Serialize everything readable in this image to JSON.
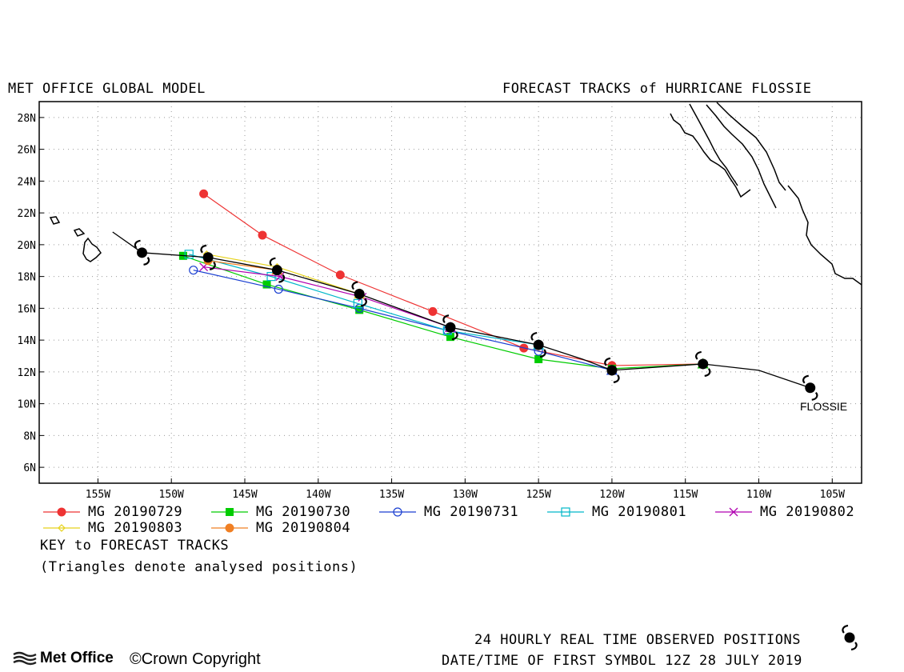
{
  "header": {
    "left_title": "MET OFFICE GLOBAL MODEL",
    "right_title": "FORECAST TRACKS of HURRICANE FLOSSIE"
  },
  "map": {
    "lon_range": [
      -159,
      -103
    ],
    "lat_range": [
      5,
      29
    ],
    "lat_ticks": [
      "28N",
      "26N",
      "24N",
      "22N",
      "20N",
      "18N",
      "16N",
      "14N",
      "12N",
      "10N",
      "8N",
      "6N"
    ],
    "lon_ticks": [
      "155W",
      "150W",
      "145W",
      "140W",
      "135W",
      "130W",
      "125W",
      "120W",
      "115W",
      "110W",
      "105W"
    ],
    "grid": "dotted",
    "storm_label": "FLOSSIE"
  },
  "legend": {
    "items": [
      {
        "label": "MG 20190729",
        "color": "#ee3333",
        "marker": "filled-circle"
      },
      {
        "label": "MG 20190730",
        "color": "#00cc00",
        "marker": "filled-square"
      },
      {
        "label": "MG 20190731",
        "color": "#1a3fd1",
        "marker": "open-circle"
      },
      {
        "label": "MG 20190801",
        "color": "#00b7c9",
        "marker": "open-square"
      },
      {
        "label": "MG 20190802",
        "color": "#b000b0",
        "marker": "cross"
      },
      {
        "label": "MG 20190803",
        "color": "#e6d21a",
        "marker": "diamond"
      },
      {
        "label": "MG 20190804",
        "color": "#f07f23",
        "marker": "filled-circle"
      }
    ],
    "key_title": "KEY to FORECAST TRACKS",
    "key_note": "(Triangles denote analysed positions)"
  },
  "footer": {
    "observed_label": "24 HOURLY REAL TIME OBSERVED POSITIONS",
    "first_symbol_label": "DATE/TIME OF FIRST SYMBOL 12Z 28 JULY 2019",
    "logo_text": "Met Office",
    "copyright": "©Crown Copyright"
  },
  "chart_data": {
    "type": "scatter",
    "xlabel": "",
    "ylabel": "",
    "xlim": [
      -159,
      -103
    ],
    "ylim": [
      5,
      29
    ],
    "observed_track": {
      "points": [
        [
          -106.5,
          11.0
        ],
        [
          -113.8,
          12.5
        ],
        [
          -120.0,
          12.1
        ],
        [
          -125.0,
          13.7
        ],
        [
          -131.0,
          14.8
        ],
        [
          -137.2,
          16.9
        ],
        [
          -142.8,
          18.4
        ],
        [
          -147.5,
          19.2
        ],
        [
          -152.0,
          19.5
        ]
      ],
      "line": [
        [
          -106.5,
          11.0
        ],
        [
          -110.0,
          12.1
        ],
        [
          -113.8,
          12.5
        ],
        [
          -120.0,
          12.1
        ],
        [
          -122.0,
          12.8
        ],
        [
          -125.0,
          13.7
        ],
        [
          -131.0,
          14.8
        ],
        [
          -137.2,
          16.9
        ],
        [
          -142.8,
          18.4
        ],
        [
          -147.5,
          19.2
        ],
        [
          -152.0,
          19.5
        ],
        [
          -154.0,
          20.8
        ]
      ]
    },
    "series": [
      {
        "name": "MG 20190729",
        "points": [
          [
            -113.8,
            12.5
          ],
          [
            -120.0,
            12.4
          ],
          [
            -126.0,
            13.5
          ],
          [
            -132.2,
            15.8
          ],
          [
            -138.5,
            18.1
          ],
          [
            -143.8,
            20.6
          ],
          [
            -147.8,
            23.2
          ]
        ]
      },
      {
        "name": "MG 20190730",
        "points": [
          [
            -113.8,
            12.5
          ],
          [
            -120.0,
            12.2
          ],
          [
            -125.0,
            12.8
          ],
          [
            -131.0,
            14.2
          ],
          [
            -137.2,
            15.9
          ],
          [
            -143.5,
            17.5
          ],
          [
            -149.2,
            19.3
          ]
        ]
      },
      {
        "name": "MG 20190731",
        "points": [
          [
            -120.0,
            12.1
          ],
          [
            -125.0,
            13.3
          ],
          [
            -131.2,
            14.6
          ],
          [
            -137.2,
            16.0
          ],
          [
            -142.7,
            17.2
          ],
          [
            -148.5,
            18.4
          ]
        ]
      },
      {
        "name": "MG 20190801",
        "points": [
          [
            -125.0,
            13.7
          ],
          [
            -131.2,
            14.6
          ],
          [
            -137.3,
            16.3
          ],
          [
            -143.2,
            18.0
          ],
          [
            -148.8,
            19.4
          ]
        ]
      },
      {
        "name": "MG 20190802",
        "points": [
          [
            -131.0,
            14.8
          ],
          [
            -137.0,
            16.7
          ],
          [
            -142.6,
            18.0
          ],
          [
            -147.8,
            18.6
          ]
        ]
      },
      {
        "name": "MG 20190803",
        "points": [
          [
            -137.2,
            16.9
          ],
          [
            -142.8,
            18.6
          ],
          [
            -147.6,
            19.4
          ]
        ]
      },
      {
        "name": "MG 20190804",
        "points": [
          [
            -142.8,
            18.4
          ],
          [
            -147.5,
            19.0
          ]
        ]
      }
    ]
  }
}
